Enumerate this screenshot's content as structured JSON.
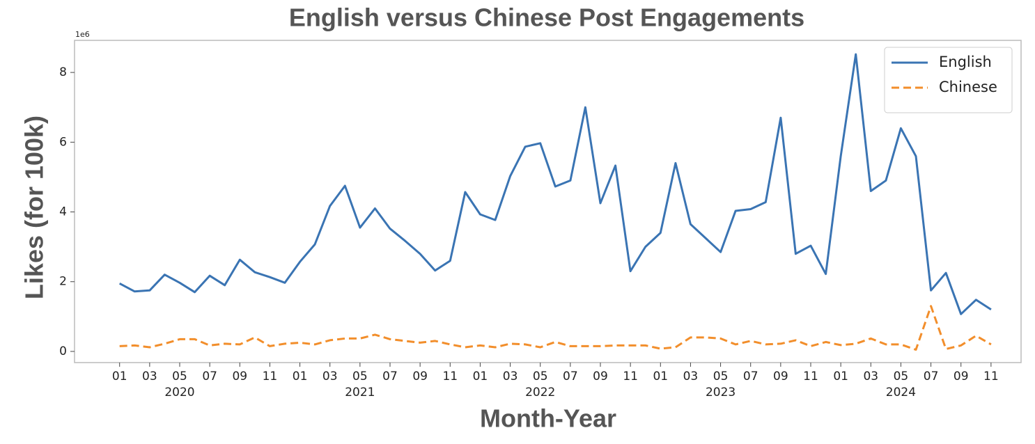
{
  "chart_data": {
    "type": "line",
    "title": "English versus Chinese Post Engagements",
    "xlabel": "Month-Year",
    "ylabel": "Likes (for 100k)",
    "y_offset_label": "1e6",
    "x": [
      "2020-01",
      "2020-02",
      "2020-03",
      "2020-04",
      "2020-05",
      "2020-06",
      "2020-07",
      "2020-08",
      "2020-09",
      "2020-10",
      "2020-11",
      "2020-12",
      "2021-01",
      "2021-02",
      "2021-03",
      "2021-04",
      "2021-05",
      "2021-06",
      "2021-07",
      "2021-08",
      "2021-09",
      "2021-10",
      "2021-11",
      "2021-12",
      "2022-01",
      "2022-02",
      "2022-03",
      "2022-04",
      "2022-05",
      "2022-06",
      "2022-07",
      "2022-08",
      "2022-09",
      "2022-10",
      "2022-11",
      "2022-12",
      "2023-01",
      "2023-02",
      "2023-03",
      "2023-04",
      "2023-05",
      "2023-06",
      "2023-07",
      "2023-08",
      "2023-09",
      "2023-10",
      "2023-11",
      "2023-12",
      "2024-01",
      "2024-02",
      "2024-03",
      "2024-04",
      "2024-05",
      "2024-06",
      "2024-07",
      "2024-08",
      "2024-09",
      "2024-10",
      "2024-11"
    ],
    "series": [
      {
        "name": "English",
        "color": "#3a74b3",
        "dash": false,
        "values": [
          1.95,
          1.72,
          1.75,
          2.2,
          1.97,
          1.7,
          2.17,
          1.9,
          2.63,
          2.27,
          2.13,
          1.97,
          2.57,
          3.07,
          4.17,
          4.75,
          3.55,
          4.1,
          3.52,
          3.17,
          2.8,
          2.32,
          2.6,
          4.57,
          3.93,
          3.77,
          5.03,
          5.87,
          5.97,
          4.73,
          4.9,
          7.0,
          4.25,
          5.33,
          2.3,
          3.0,
          3.4,
          5.4,
          3.65,
          3.25,
          2.85,
          4.03,
          4.08,
          4.28,
          6.7,
          2.8,
          3.03,
          2.22,
          5.6,
          8.52,
          4.6,
          4.9,
          6.4,
          5.6,
          1.75,
          2.25,
          1.07,
          1.48,
          1.2
        ]
      },
      {
        "name": "Chinese",
        "color": "#f28e2b",
        "dash": true,
        "values": [
          0.15,
          0.17,
          0.12,
          0.22,
          0.35,
          0.35,
          0.17,
          0.22,
          0.2,
          0.4,
          0.15,
          0.22,
          0.25,
          0.2,
          0.32,
          0.37,
          0.37,
          0.48,
          0.35,
          0.3,
          0.25,
          0.3,
          0.2,
          0.12,
          0.17,
          0.12,
          0.22,
          0.2,
          0.12,
          0.27,
          0.15,
          0.15,
          0.15,
          0.17,
          0.17,
          0.17,
          0.08,
          0.12,
          0.4,
          0.4,
          0.37,
          0.2,
          0.3,
          0.2,
          0.22,
          0.32,
          0.15,
          0.27,
          0.18,
          0.22,
          0.37,
          0.2,
          0.2,
          0.05,
          1.3,
          0.07,
          0.17,
          0.45,
          0.2
        ]
      }
    ],
    "xlim": [
      "2019-10",
      "2025-01"
    ],
    "xticks": [
      {
        "value": "2020-01",
        "label": "01"
      },
      {
        "value": "2020-03",
        "label": "03"
      },
      {
        "value": "2020-05",
        "label": "05"
      },
      {
        "value": "2020-07",
        "label": "07"
      },
      {
        "value": "2020-09",
        "label": "09"
      },
      {
        "value": "2020-11",
        "label": "11"
      },
      {
        "value": "2021-01",
        "label": "01"
      },
      {
        "value": "2021-03",
        "label": "03"
      },
      {
        "value": "2021-05",
        "label": "05"
      },
      {
        "value": "2021-07",
        "label": "07"
      },
      {
        "value": "2021-09",
        "label": "09"
      },
      {
        "value": "2021-11",
        "label": "11"
      },
      {
        "value": "2022-01",
        "label": "01"
      },
      {
        "value": "2022-03",
        "label": "03"
      },
      {
        "value": "2022-05",
        "label": "05"
      },
      {
        "value": "2022-07",
        "label": "07"
      },
      {
        "value": "2022-09",
        "label": "09"
      },
      {
        "value": "2022-11",
        "label": "11"
      },
      {
        "value": "2023-01",
        "label": "01"
      },
      {
        "value": "2023-03",
        "label": "03"
      },
      {
        "value": "2023-05",
        "label": "05"
      },
      {
        "value": "2023-07",
        "label": "07"
      },
      {
        "value": "2023-09",
        "label": "09"
      },
      {
        "value": "2023-11",
        "label": "11"
      },
      {
        "value": "2024-01",
        "label": "01"
      },
      {
        "value": "2024-03",
        "label": "03"
      },
      {
        "value": "2024-05",
        "label": "05"
      },
      {
        "value": "2024-07",
        "label": "07"
      },
      {
        "value": "2024-09",
        "label": "09"
      },
      {
        "value": "2024-11",
        "label": "11"
      }
    ],
    "year_labels": [
      "2020",
      "2021",
      "2022",
      "2023",
      "2024"
    ],
    "ylim": [
      -0.32,
      8.92
    ],
    "yticks": [
      0,
      2,
      4,
      6,
      8
    ],
    "grid": false,
    "legend": "upper right"
  }
}
